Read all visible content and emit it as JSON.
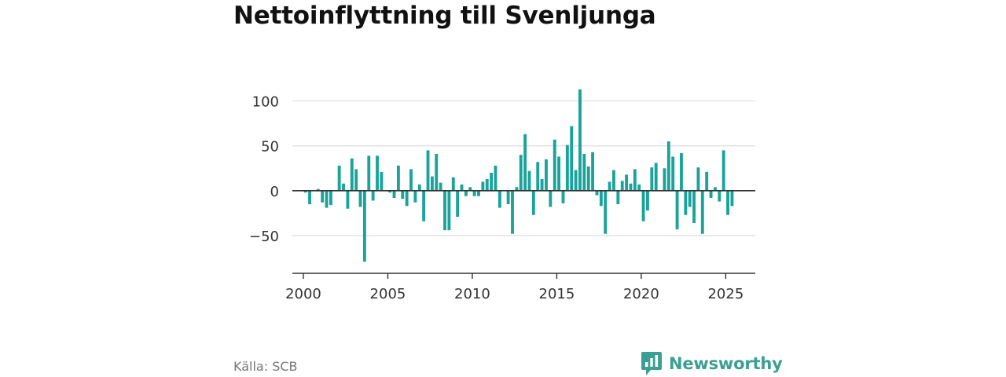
{
  "title": "Nettoinflyttning till Svenljunga",
  "source": "Källa: SCB",
  "brand": {
    "name": "Newsworthy",
    "icon": "newsworthy-logo-icon",
    "color": "#3a9f94"
  },
  "chart_data": {
    "type": "bar",
    "title": "Nettoinflyttning till Svenljunga",
    "xlabel": "",
    "ylabel": "",
    "bar_color": "#1aa39a",
    "x_ticks": [
      {
        "label": "2000",
        "value": 2000
      },
      {
        "label": "2005",
        "value": 2005
      },
      {
        "label": "2010",
        "value": 2010
      },
      {
        "label": "2015",
        "value": 2015
      },
      {
        "label": "2020",
        "value": 2020
      },
      {
        "label": "2025",
        "value": 2025
      }
    ],
    "y_ticks": [
      {
        "label": "100",
        "value": 100
      },
      {
        "label": "50",
        "value": 50
      },
      {
        "label": "0",
        "value": 0
      },
      {
        "label": "−50",
        "value": -50
      }
    ],
    "xlim": [
      1999.35,
      2026.75
    ],
    "ylim": [
      -92,
      125
    ],
    "grid": true,
    "x": [
      2000.125,
      2000.375,
      2000.625,
      2000.875,
      2001.125,
      2001.375,
      2001.625,
      2001.875,
      2002.125,
      2002.375,
      2002.625,
      2002.875,
      2003.125,
      2003.375,
      2003.625,
      2003.875,
      2004.125,
      2004.375,
      2004.625,
      2004.875,
      2005.125,
      2005.375,
      2005.625,
      2005.875,
      2006.125,
      2006.375,
      2006.625,
      2006.875,
      2007.125,
      2007.375,
      2007.625,
      2007.875,
      2008.125,
      2008.375,
      2008.625,
      2008.875,
      2009.125,
      2009.375,
      2009.625,
      2009.875,
      2010.125,
      2010.375,
      2010.625,
      2010.875,
      2011.125,
      2011.375,
      2011.625,
      2011.875,
      2012.125,
      2012.375,
      2012.625,
      2012.875,
      2013.125,
      2013.375,
      2013.625,
      2013.875,
      2014.125,
      2014.375,
      2014.625,
      2014.875,
      2015.125,
      2015.375,
      2015.625,
      2015.875,
      2016.125,
      2016.375,
      2016.625,
      2016.875,
      2017.125,
      2017.375,
      2017.625,
      2017.875,
      2018.125,
      2018.375,
      2018.625,
      2018.875,
      2019.125,
      2019.375,
      2019.625,
      2019.875,
      2020.125,
      2020.375,
      2020.625,
      2020.875,
      2021.125,
      2021.375,
      2021.625,
      2021.875,
      2022.125,
      2022.375,
      2022.625,
      2022.875,
      2023.125,
      2023.375,
      2023.625,
      2023.875,
      2024.125,
      2024.375,
      2024.625,
      2024.875,
      2025.125,
      2025.375
    ],
    "values": [
      -2,
      -15,
      0,
      2,
      -13,
      -19,
      -16,
      0,
      28,
      8,
      -20,
      36,
      24,
      -18,
      -79,
      39,
      -11,
      39,
      21,
      0,
      -2,
      -8,
      28,
      -9,
      -17,
      24,
      -13,
      7,
      -34,
      45,
      16,
      41,
      9,
      -44,
      -44,
      15,
      -29,
      7,
      -6,
      4,
      -6,
      -6,
      10,
      13,
      20,
      28,
      -19,
      0,
      -15,
      -48,
      4,
      40,
      63,
      22,
      -27,
      32,
      13,
      35,
      -18,
      57,
      38,
      -14,
      51,
      72,
      23,
      113,
      41,
      27,
      43,
      -5,
      -17,
      -48,
      10,
      23,
      -15,
      11,
      18,
      8,
      24,
      7,
      -34,
      -22,
      26,
      31,
      0,
      25,
      55,
      38,
      -43,
      42,
      -27,
      -18,
      -36,
      26,
      -48,
      21,
      -8,
      4,
      -12,
      45,
      -27,
      -17
    ]
  }
}
